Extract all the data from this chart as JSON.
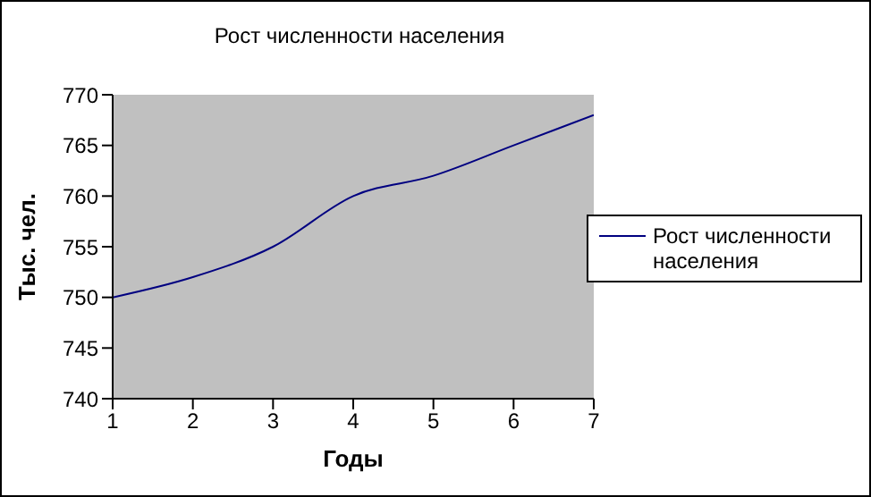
{
  "chart_data": {
    "type": "line",
    "title": "Рост численности населения",
    "xlabel": "Годы",
    "ylabel": "Тыс. чел.",
    "x": [
      1,
      2,
      3,
      4,
      5,
      6,
      7
    ],
    "series": [
      {
        "name": "Рост численности населения",
        "color": "#000080",
        "values": [
          750,
          752,
          755,
          760,
          762,
          765,
          768
        ]
      }
    ],
    "xlim": [
      1,
      7
    ],
    "xticks": [
      1,
      2,
      3,
      4,
      5,
      6,
      7
    ],
    "ylim": [
      740,
      770
    ],
    "yticks": [
      740,
      745,
      750,
      755,
      760,
      765,
      770
    ],
    "grid": false,
    "legend": "right",
    "marker": "none",
    "line_style": "solid"
  }
}
